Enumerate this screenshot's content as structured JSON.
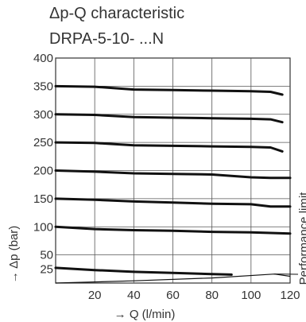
{
  "title_line1": "Δp-Q characteristic",
  "title_line2": "DRPA-5-10- ...N",
  "chart_data": {
    "type": "line",
    "xlabel": "→ Q (l/min)",
    "ylabel": "→ Δp (bar)",
    "xlim": [
      0,
      120
    ],
    "ylim": [
      0,
      400
    ],
    "xticks": [
      "20",
      "40",
      "60",
      "80",
      "100",
      "120"
    ],
    "yticks": [
      "25",
      "50",
      "100",
      "150",
      "200",
      "250",
      "300",
      "350",
      "400"
    ],
    "grid": true,
    "annotation": "Performance limit",
    "series": [
      {
        "x": [
          0,
          20,
          40,
          60,
          80,
          100,
          110,
          116
        ],
        "y": [
          350,
          349,
          344,
          343,
          342,
          341,
          340,
          335
        ]
      },
      {
        "x": [
          0,
          20,
          40,
          60,
          80,
          100,
          110,
          116
        ],
        "y": [
          300,
          299,
          295,
          294,
          293,
          292,
          291,
          286
        ]
      },
      {
        "x": [
          0,
          20,
          40,
          60,
          80,
          100,
          110,
          116
        ],
        "y": [
          250,
          249,
          245,
          244,
          243,
          242,
          241,
          234
        ]
      },
      {
        "x": [
          0,
          20,
          40,
          60,
          80,
          100,
          110,
          120
        ],
        "y": [
          200,
          198,
          195,
          194,
          193,
          188,
          187,
          187
        ]
      },
      {
        "x": [
          0,
          20,
          40,
          60,
          80,
          100,
          110,
          120
        ],
        "y": [
          150,
          148,
          145,
          143,
          141,
          140,
          136,
          136
        ]
      },
      {
        "x": [
          0,
          20,
          40,
          60,
          80,
          100,
          120
        ],
        "y": [
          100,
          96,
          94,
          93,
          91,
          90,
          88
        ]
      },
      {
        "x": [
          0,
          20,
          40,
          60,
          80,
          90
        ],
        "y": [
          27,
          23,
          20,
          18,
          16,
          15
        ]
      }
    ],
    "limit_line": {
      "x": [
        0,
        40,
        80,
        112,
        120
      ],
      "y": [
        0,
        4,
        9,
        16,
        12
      ]
    }
  }
}
